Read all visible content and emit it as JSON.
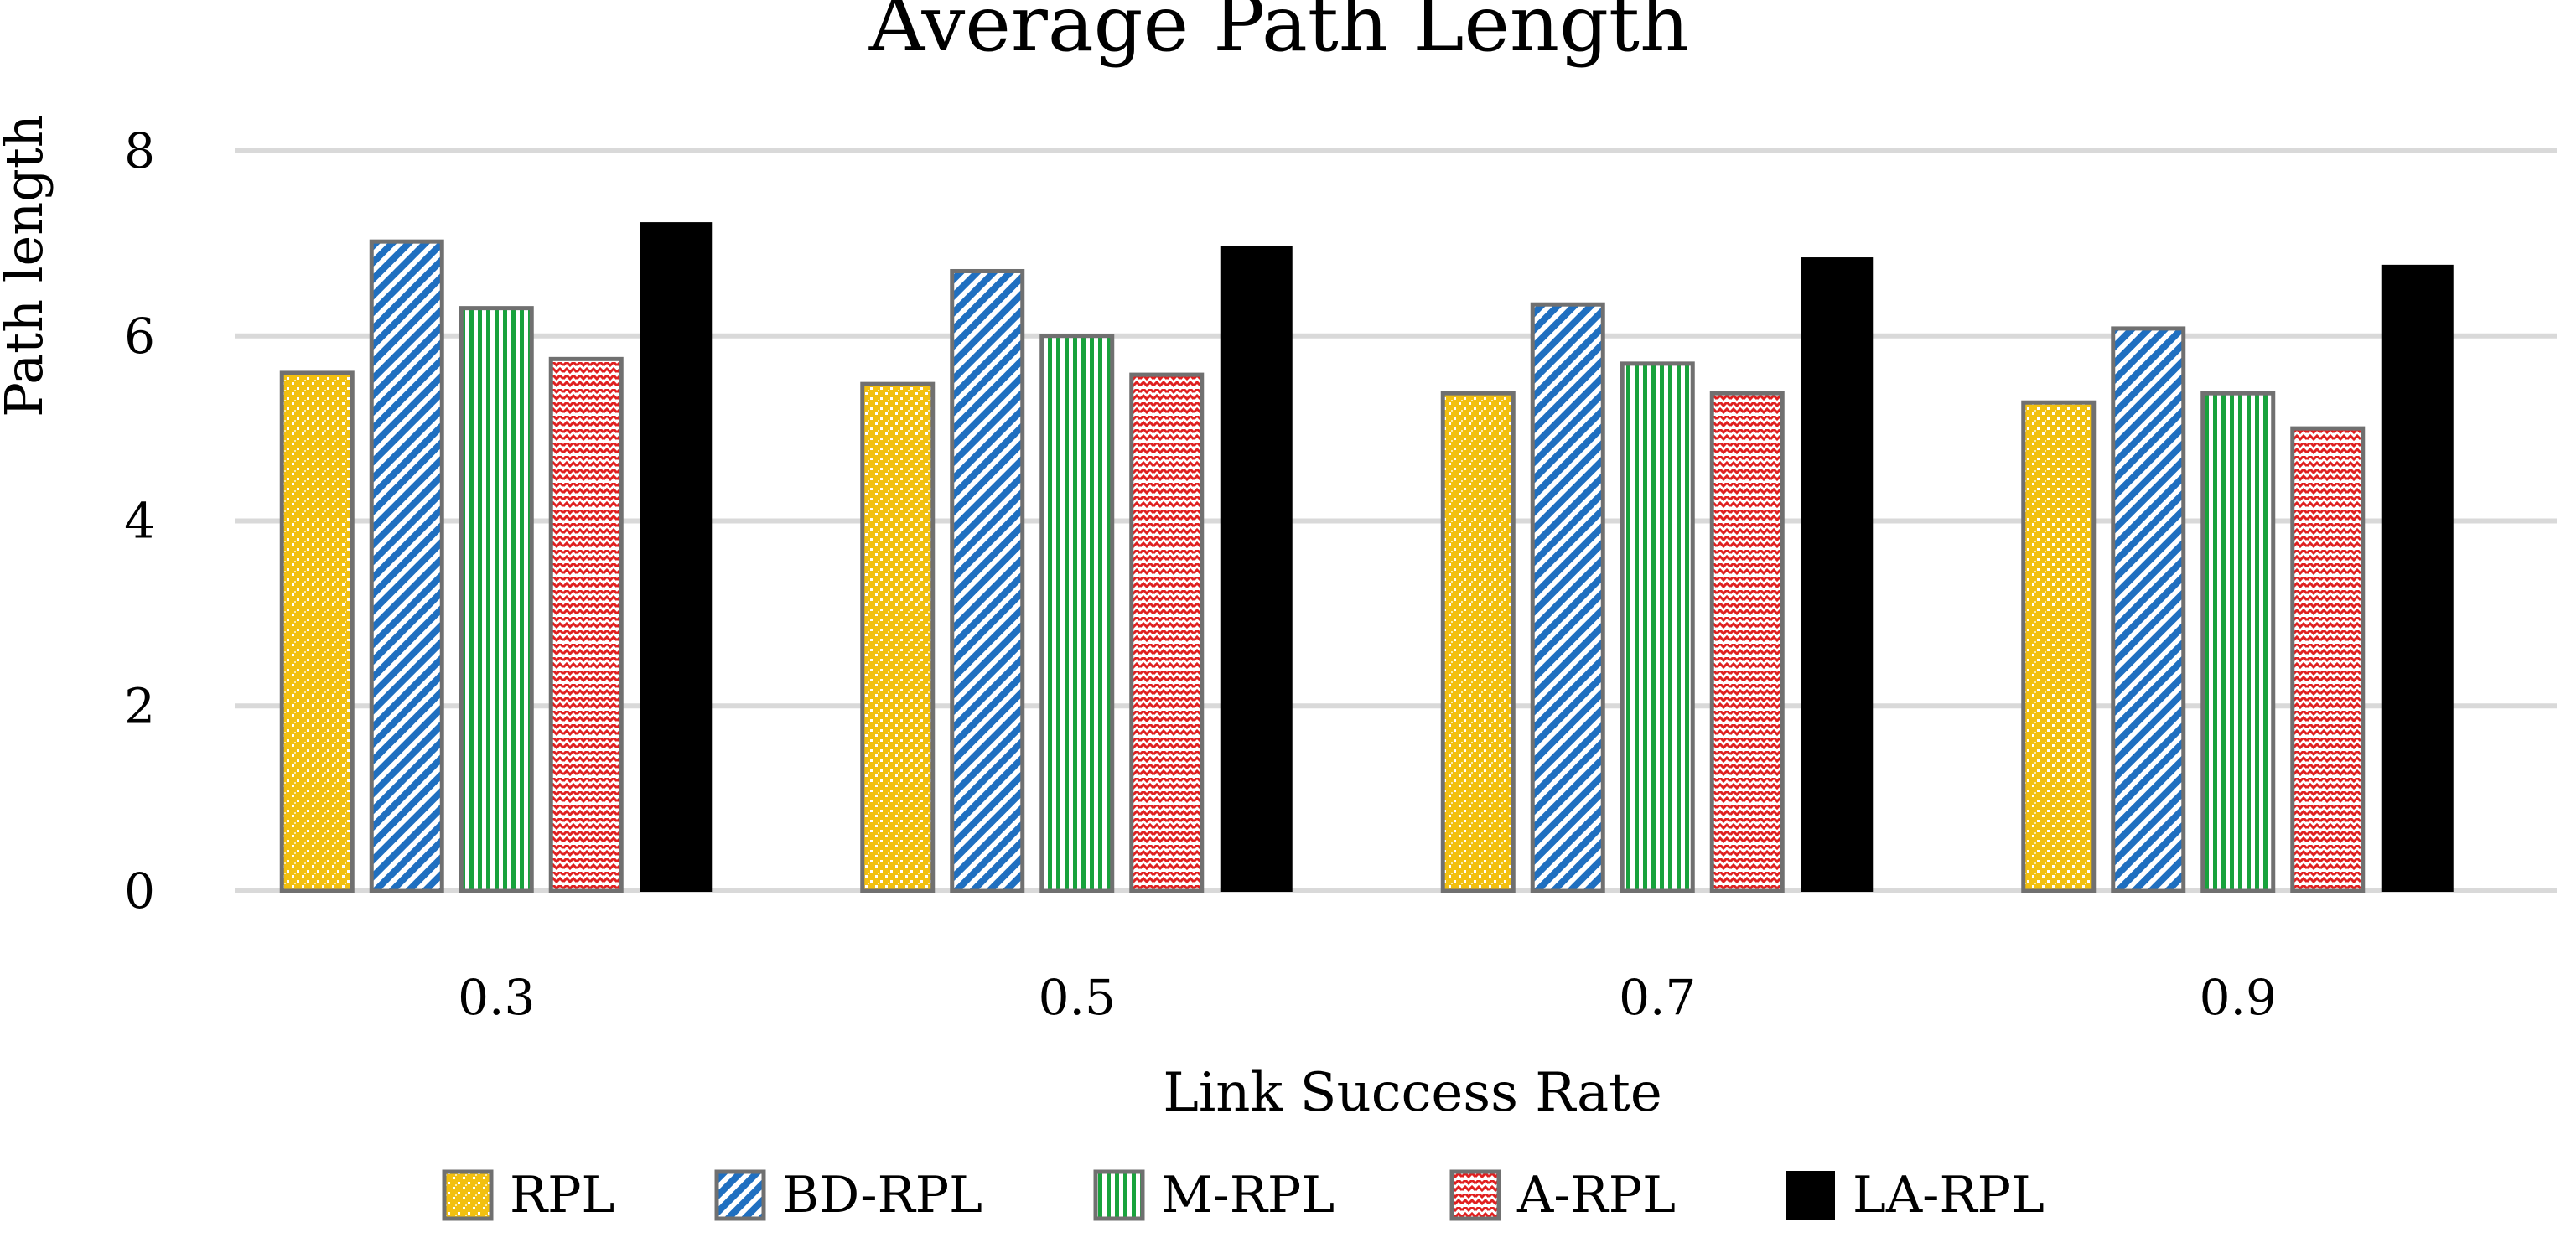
{
  "chart_data": {
    "type": "bar",
    "title": "Average Path Length",
    "xlabel": "Link Success Rate",
    "ylabel": "Path length",
    "categories": [
      "0.3",
      "0.5",
      "0.7",
      "0.9"
    ],
    "ylim": [
      0,
      8
    ],
    "yticks": [
      0,
      2,
      4,
      6,
      8
    ],
    "ytick_labels": [
      "0",
      "2",
      "4",
      "6",
      "8"
    ],
    "grid": true,
    "legend_position": "bottom",
    "series": [
      {
        "name": "RPL",
        "pattern": "checker-dots",
        "color": "#F2C010",
        "values": [
          5.6,
          5.48,
          5.38,
          5.28
        ]
      },
      {
        "name": "BD-RPL",
        "pattern": "diagonal-stripes",
        "color": "#1F6FC0",
        "values": [
          7.02,
          6.7,
          6.34,
          6.08
        ]
      },
      {
        "name": "M-RPL",
        "pattern": "vertical-stripes",
        "color": "#18A23C",
        "values": [
          6.3,
          6.0,
          5.7,
          5.38
        ]
      },
      {
        "name": "A-RPL",
        "pattern": "zigzag",
        "color": "#E02020",
        "values": [
          5.75,
          5.58,
          5.38,
          5.0
        ]
      },
      {
        "name": "LA-RPL",
        "pattern": "solid",
        "color": "#000000",
        "values": [
          7.22,
          6.96,
          6.84,
          6.76
        ]
      }
    ]
  }
}
